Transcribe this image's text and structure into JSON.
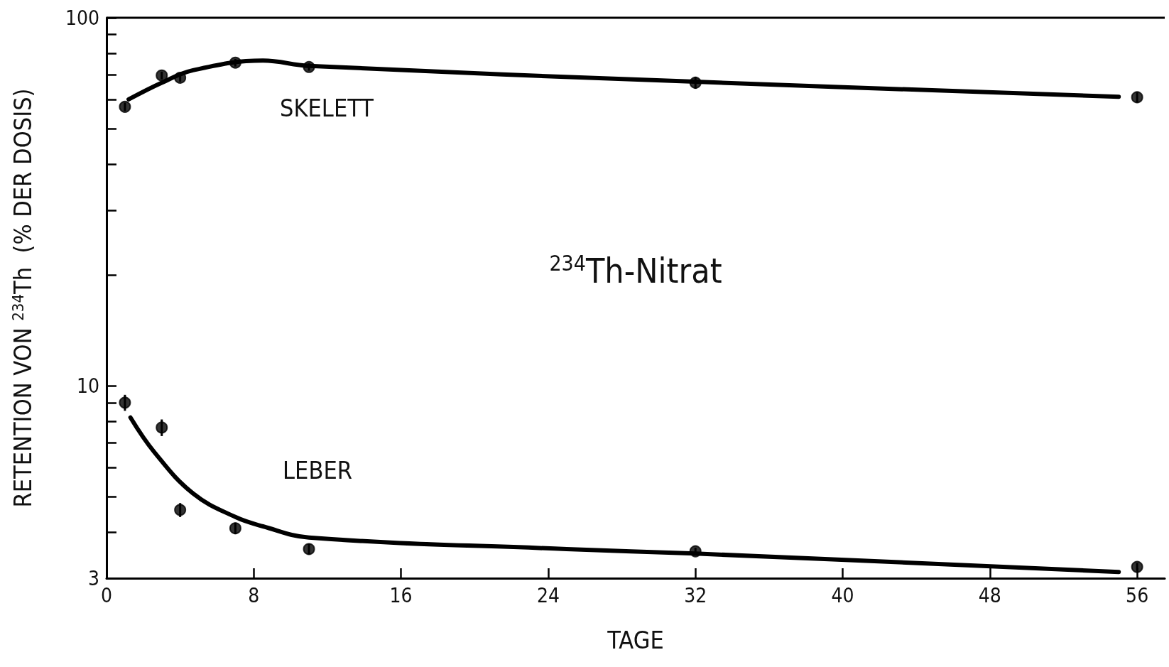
{
  "chart_data": {
    "type": "scatter",
    "title": "$^{234}$Th-Nitrat",
    "xlabel": "TAGE",
    "ylabel": "RETENTION VON $^{234}$Th  (% DER DOSIS)",
    "log": "y",
    "xlim": [
      0,
      57.5
    ],
    "xticks": [
      0,
      8,
      16,
      24,
      32,
      40,
      48,
      56
    ],
    "ylim": [
      3,
      100
    ],
    "yticks": [
      3,
      {
        "value": 4,
        "label": null
      },
      {
        "value": 5,
        "label": null
      },
      {
        "value": 6,
        "label": null
      },
      {
        "value": 7,
        "label": null
      },
      {
        "value": 8,
        "label": null
      },
      {
        "value": 9,
        "label": null
      },
      10,
      {
        "value": 20,
        "label": null
      },
      {
        "value": 30,
        "label": null
      },
      {
        "value": 40,
        "label": null
      },
      {
        "value": 50,
        "label": null
      },
      {
        "value": 60,
        "label": null
      },
      {
        "value": 70,
        "label": null
      },
      {
        "value": 80,
        "label": null
      },
      {
        "value": 90,
        "label": null
      },
      100
    ],
    "grid": false,
    "series": [
      {
        "type": "line",
        "marker": "none",
        "color": "#000000",
        "x": [
          1.2,
          3,
          4.7,
          8.5,
          11,
          32,
          55
        ],
        "values": [
          60,
          66.6,
          72,
          76.5,
          74,
          67,
          61
        ]
      },
      {
        "marker": "circle",
        "color": "#000000",
        "x": [
          1,
          3,
          4,
          7,
          11,
          32,
          56
        ],
        "values": [
          57.3,
          69.7,
          68.7,
          75.5,
          73.5,
          66.6,
          60.8
        ],
        "errors": [
          1.5,
          1.7,
          1.7,
          1.8,
          1.7,
          2.5,
          2
        ]
      },
      {
        "type": "line",
        "marker": "none",
        "color": "#000000",
        "x": [
          1.3,
          2.6,
          4.7,
          7,
          8.5,
          11,
          25,
          32,
          55
        ],
        "values": [
          8.2,
          6.6,
          5.1,
          4.4,
          4.15,
          3.87,
          3.6,
          3.5,
          3.12
        ]
      },
      {
        "marker": "circle",
        "color": "#000000",
        "x": [
          1,
          3,
          4,
          7,
          11,
          32,
          56
        ],
        "values": [
          9.0,
          7.7,
          4.6,
          4.1,
          3.6,
          3.55,
          3.22
        ],
        "errors": [
          0.45,
          0.4,
          0.2,
          0.15,
          0.12,
          0.08,
          0.08
        ]
      }
    ],
    "annotations": [
      "SKELETT",
      "LEBER"
    ]
  }
}
